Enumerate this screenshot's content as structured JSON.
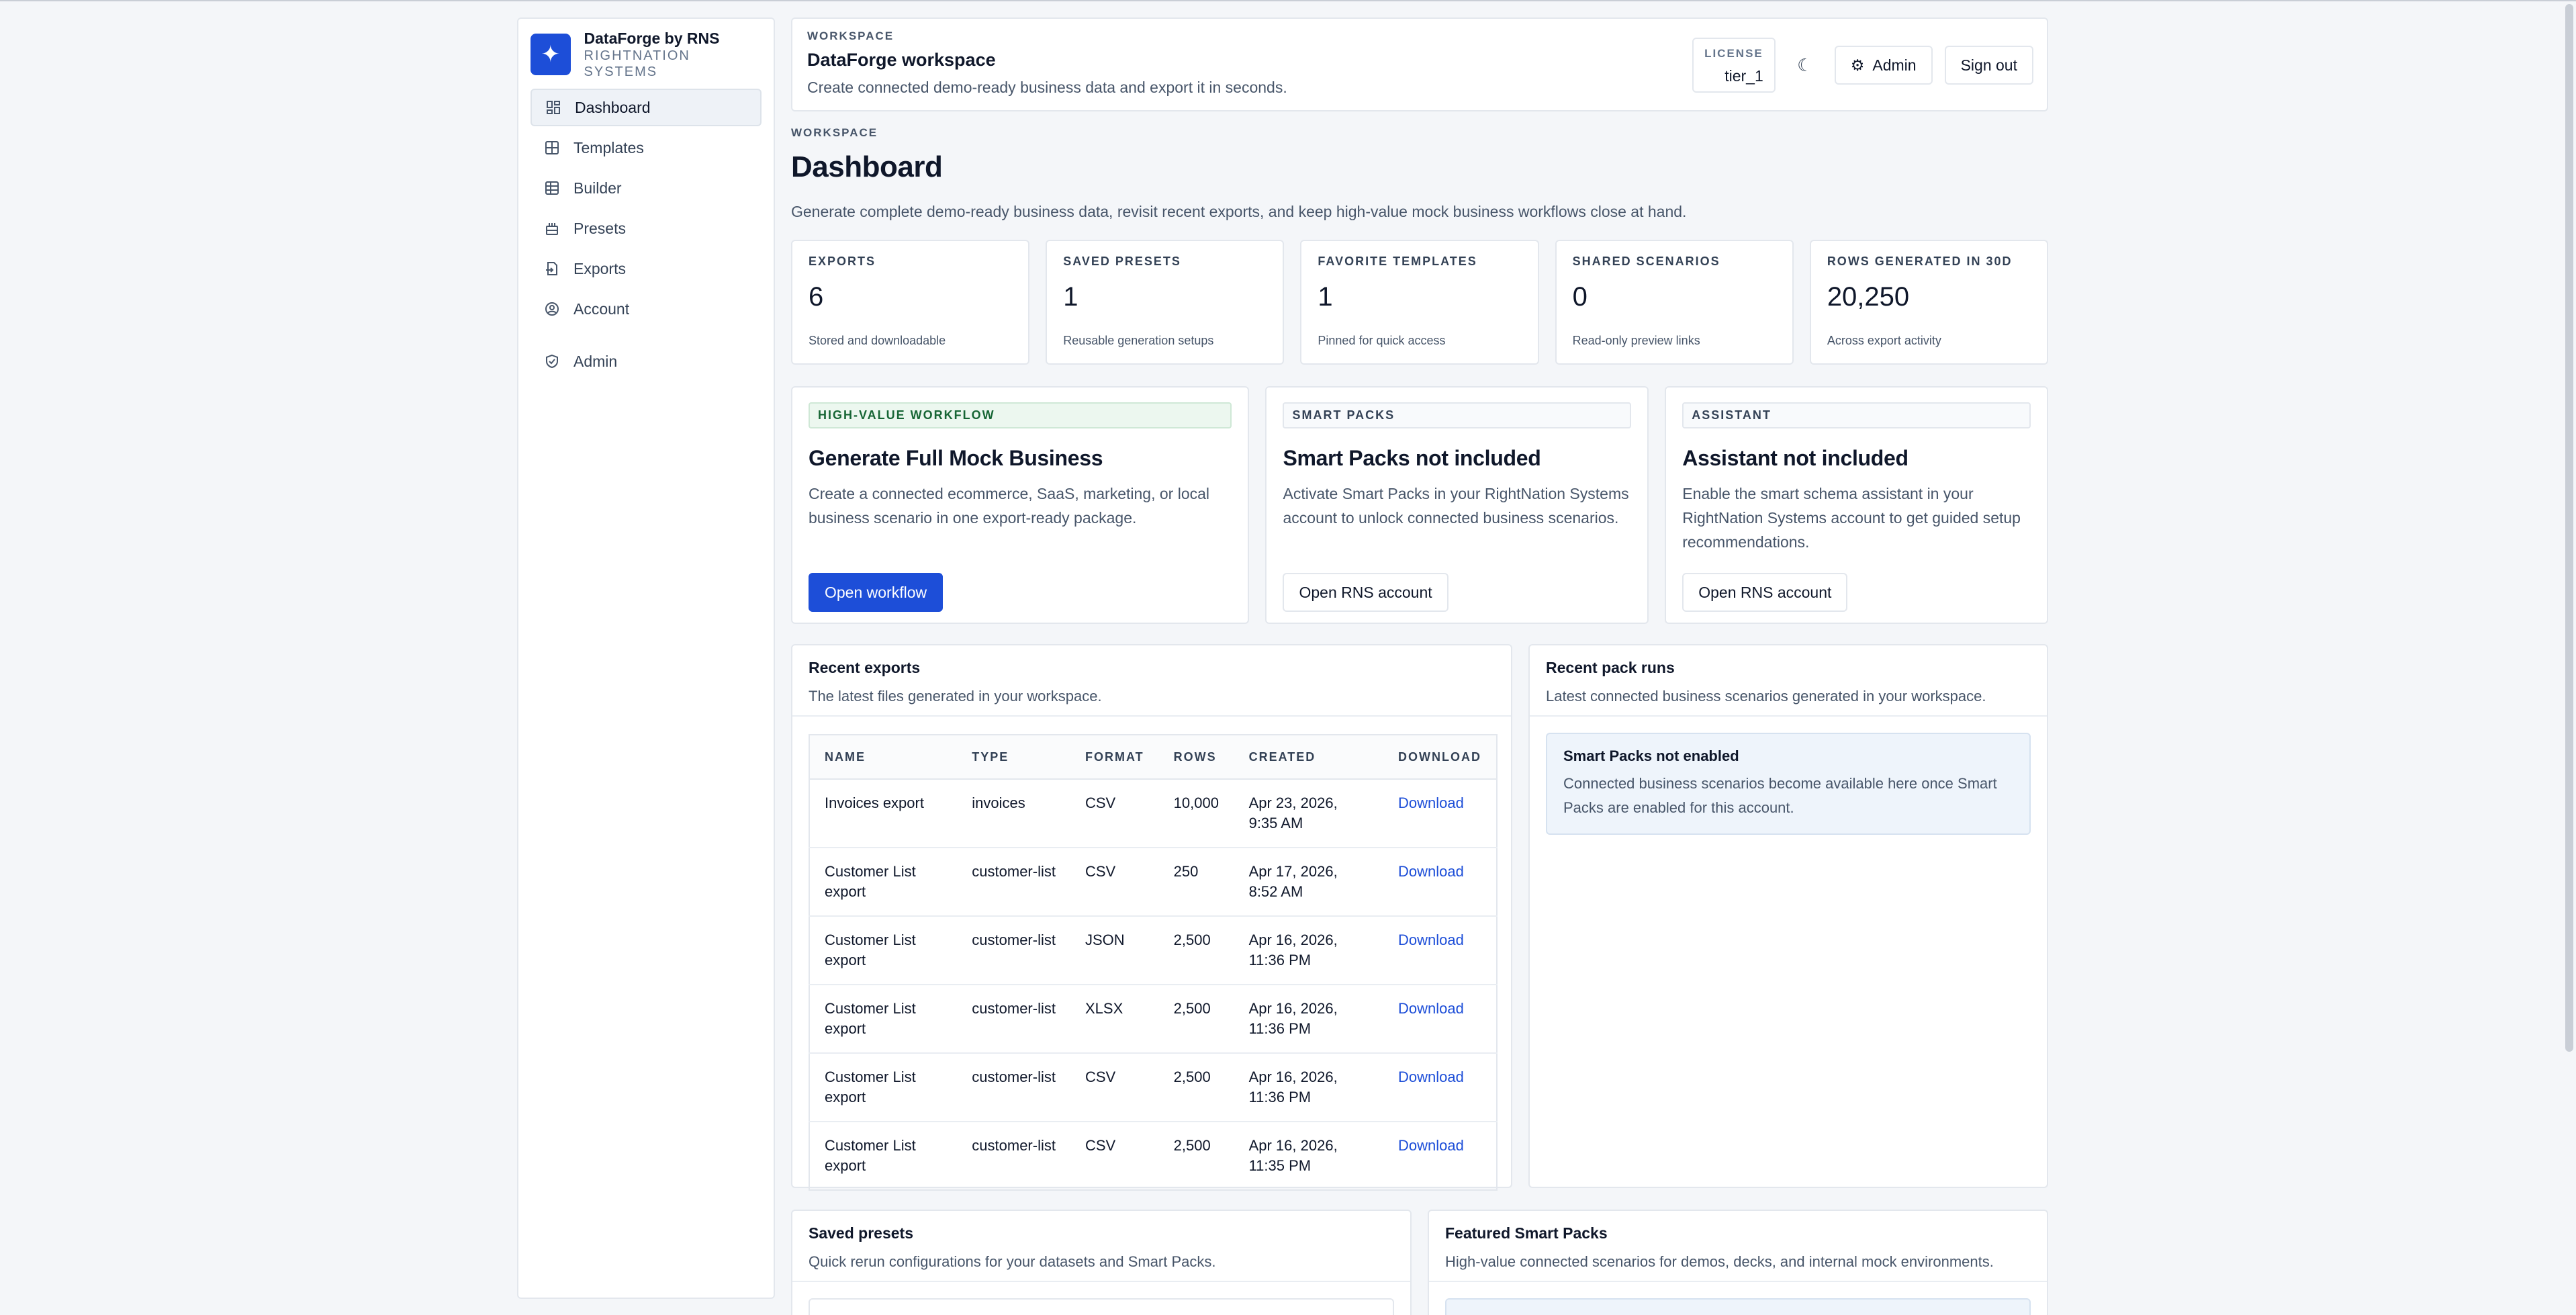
{
  "brand": {
    "name": "DataForge by RNS",
    "sub": "RIGHTNATION SYSTEMS",
    "logo_icon": "sparkles-icon"
  },
  "sidebar": {
    "items": [
      {
        "label": "Dashboard",
        "icon": "dashboard-icon",
        "active": true
      },
      {
        "label": "Templates",
        "icon": "templates-icon"
      },
      {
        "label": "Builder",
        "icon": "builder-icon"
      },
      {
        "label": "Presets",
        "icon": "presets-icon"
      },
      {
        "label": "Exports",
        "icon": "exports-icon"
      },
      {
        "label": "Account",
        "icon": "account-icon"
      }
    ],
    "admin": {
      "label": "Admin",
      "icon": "shield-icon"
    }
  },
  "header": {
    "eyebrow": "WORKSPACE",
    "title": "DataForge workspace",
    "subtitle": "Create connected demo-ready business data and export it in seconds.",
    "license_label": "LICENSE",
    "license_value": "tier_1",
    "admin_label": "Admin",
    "signout_label": "Sign out"
  },
  "page": {
    "eyebrow": "WORKSPACE",
    "title": "Dashboard",
    "subtitle": "Generate complete demo-ready business data, revisit recent exports, and keep high-value mock business workflows close at hand."
  },
  "stats": [
    {
      "label": "EXPORTS",
      "value": "6",
      "note": "Stored and downloadable"
    },
    {
      "label": "SAVED PRESETS",
      "value": "1",
      "note": "Reusable generation setups"
    },
    {
      "label": "FAVORITE TEMPLATES",
      "value": "1",
      "note": "Pinned for quick access"
    },
    {
      "label": "SHARED SCENARIOS",
      "value": "0",
      "note": "Read-only preview links"
    },
    {
      "label": "ROWS GENERATED IN 30D",
      "value": "20,250",
      "note": "Across export activity"
    }
  ],
  "features": [
    {
      "tag": "HIGH-VALUE WORKFLOW",
      "title": "Generate Full Mock Business",
      "desc": "Create a connected ecommerce, SaaS, marketing, or local business scenario in one export-ready package.",
      "button": "Open workflow"
    },
    {
      "tag": "SMART PACKS",
      "title": "Smart Packs not included",
      "desc": "Activate Smart Packs in your RightNation Systems account to unlock connected business scenarios.",
      "button": "Open RNS account"
    },
    {
      "tag": "ASSISTANT",
      "title": "Assistant not included",
      "desc": "Enable the smart schema assistant in your RightNation Systems account to get guided setup recommendations.",
      "button": "Open RNS account"
    }
  ],
  "exports": {
    "title": "Recent exports",
    "subtitle": "The latest files generated in your workspace.",
    "columns": [
      "NAME",
      "TYPE",
      "FORMAT",
      "ROWS",
      "CREATED",
      "DOWNLOAD"
    ],
    "rows": [
      {
        "name": "Invoices export",
        "type": "invoices",
        "format": "CSV",
        "rows": "10,000",
        "created": "Apr 23, 2026, 9:35 AM",
        "download": "Download"
      },
      {
        "name": "Customer List export",
        "type": "customer-list",
        "format": "CSV",
        "rows": "250",
        "created": "Apr 17, 2026, 8:52 AM",
        "download": "Download"
      },
      {
        "name": "Customer List export",
        "type": "customer-list",
        "format": "JSON",
        "rows": "2,500",
        "created": "Apr 16, 2026, 11:36 PM",
        "download": "Download"
      },
      {
        "name": "Customer List export",
        "type": "customer-list",
        "format": "XLSX",
        "rows": "2,500",
        "created": "Apr 16, 2026, 11:36 PM",
        "download": "Download"
      },
      {
        "name": "Customer List export",
        "type": "customer-list",
        "format": "CSV",
        "rows": "2,500",
        "created": "Apr 16, 2026, 11:36 PM",
        "download": "Download"
      },
      {
        "name": "Customer List export",
        "type": "customer-list",
        "format": "CSV",
        "rows": "2,500",
        "created": "Apr 16, 2026, 11:35 PM",
        "download": "Download"
      }
    ]
  },
  "packs": {
    "title": "Recent pack runs",
    "subtitle": "Latest connected business scenarios generated in your workspace.",
    "notice_title": "Smart Packs not enabled",
    "notice_desc": "Connected business scenarios become available here once Smart Packs are enabled for this account."
  },
  "saved_presets": {
    "title": "Saved presets",
    "subtitle": "Quick rerun configurations for your datasets and Smart Packs."
  },
  "featured_packs": {
    "title": "Featured Smart Packs",
    "subtitle": "High-value connected scenarios for demos, decks, and internal mock environments."
  },
  "colors": {
    "accent": "#1d4ed8",
    "background": "#f4f6f9"
  }
}
